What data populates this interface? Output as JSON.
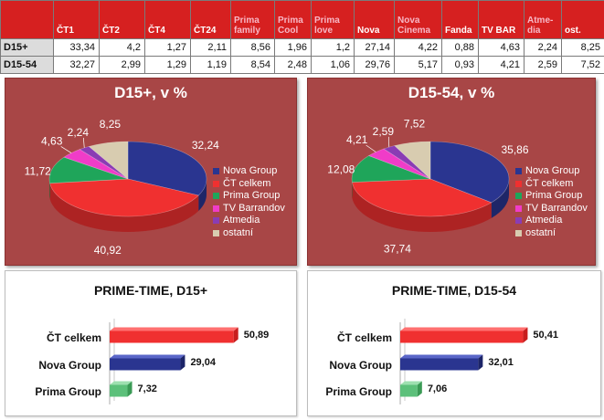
{
  "table": {
    "columns": [
      "ČT1",
      "ČT2",
      "ČT4",
      "ČT24",
      "Prima family",
      "Prima Cool",
      "Prima love",
      "Nova",
      "Nova Cinema",
      "Fanda",
      "TV BAR",
      "Atme-dia",
      "ost."
    ],
    "rows": [
      {
        "label": "D15+",
        "values": [
          "33,34",
          "4,2",
          "1,27",
          "2,11",
          "8,56",
          "1,96",
          "1,2",
          "27,14",
          "4,22",
          "0,88",
          "4,63",
          "2,24",
          "8,25"
        ]
      },
      {
        "label": "D15-54",
        "values": [
          "32,27",
          "2,99",
          "1,29",
          "1,19",
          "8,54",
          "2,48",
          "1,06",
          "29,76",
          "5,17",
          "0,93",
          "4,21",
          "2,59",
          "7,52"
        ]
      }
    ]
  },
  "colors": {
    "nova": "#2a3590",
    "ct": "#f03030",
    "prima": "#1fa55a",
    "barrandov": "#f03cc8",
    "atmedia": "#8a3cb4",
    "ostatni": "#d8ccb0",
    "panel": "#a84646",
    "header": "#d62020"
  },
  "chart_data": [
    {
      "type": "pie",
      "title": "D15+, v %",
      "legend": [
        "Nova Group",
        "ČT celkem",
        "Prima Group",
        "TV Barrandov",
        "Atmedia",
        "ostatní"
      ],
      "values": [
        32.24,
        40.92,
        11.72,
        4.63,
        2.24,
        8.25
      ],
      "labels": [
        "32,24",
        "40,92",
        "11,72",
        "4,63",
        "2,24",
        "8,25"
      ],
      "legend_position": "right"
    },
    {
      "type": "pie",
      "title": "D15-54, v %",
      "legend": [
        "Nova Group",
        "ČT celkem",
        "Prima Group",
        "TV Barrandov",
        "Atmedia",
        "ostatní"
      ],
      "values": [
        35.86,
        37.74,
        12.08,
        4.21,
        2.59,
        7.52
      ],
      "labels": [
        "35,86",
        "37,74",
        "12,08",
        "4,21",
        "2,59",
        "7,52"
      ],
      "legend_position": "right"
    },
    {
      "type": "bar",
      "title": "PRIME-TIME, D15+",
      "categories": [
        "ČT celkem",
        "Nova Group",
        "Prima Group"
      ],
      "values": [
        50.89,
        29.04,
        7.32
      ],
      "labels": [
        "50,89",
        "29,04",
        "7,32"
      ],
      "xlim": [
        0,
        60
      ]
    },
    {
      "type": "bar",
      "title": "PRIME-TIME, D15-54",
      "categories": [
        "ČT celkem",
        "Nova Group",
        "Prima Group"
      ],
      "values": [
        50.41,
        32.01,
        7.06
      ],
      "labels": [
        "50,41",
        "32,01",
        "7,06"
      ],
      "xlim": [
        0,
        60
      ]
    }
  ]
}
